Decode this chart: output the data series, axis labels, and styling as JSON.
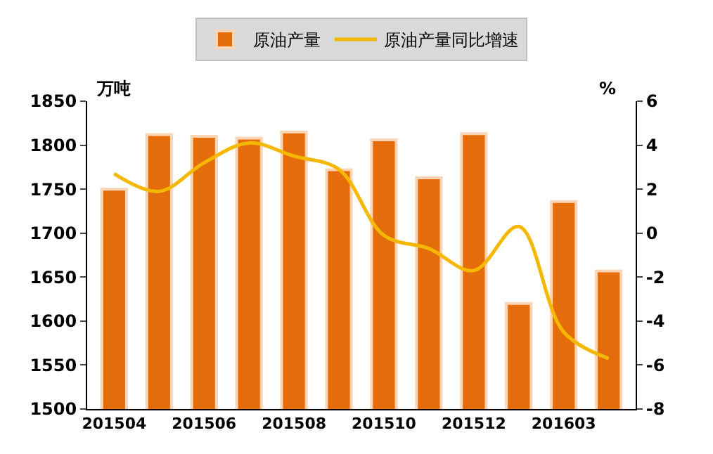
{
  "chart_data": {
    "type": "bar",
    "ylabel": "万吨",
    "y2label": "%",
    "categories": [
      "201504",
      null,
      "201506",
      null,
      "201508",
      null,
      "201510",
      null,
      "201512",
      null,
      "201603",
      null
    ],
    "series": [
      {
        "name": "原油产量",
        "color": "#e46c0a",
        "values": [
          1750,
          1812,
          1810,
          1808,
          1815,
          1772,
          1806,
          1763,
          1813,
          1620,
          1736,
          1657
        ]
      },
      {
        "name": "原油产量同比增速",
        "type": "line",
        "axis": "y2",
        "color": "#f5b800",
        "marker": "none",
        "line_style": "solid",
        "values": [
          2.7,
          1.9,
          3.2,
          4.1,
          3.5,
          2.9,
          -0.1,
          -0.7,
          -1.7,
          0.3,
          -4.5,
          -5.7
        ]
      }
    ],
    "ylim": [
      1500,
      1850
    ],
    "yticks": [
      1500,
      1550,
      1600,
      1650,
      1700,
      1750,
      1800,
      1850
    ],
    "y2lim": [
      -8,
      6
    ],
    "y2ticks": [
      -8,
      -6,
      -4,
      -2,
      0,
      2,
      4,
      6
    ],
    "grid": false,
    "legend": "top"
  }
}
